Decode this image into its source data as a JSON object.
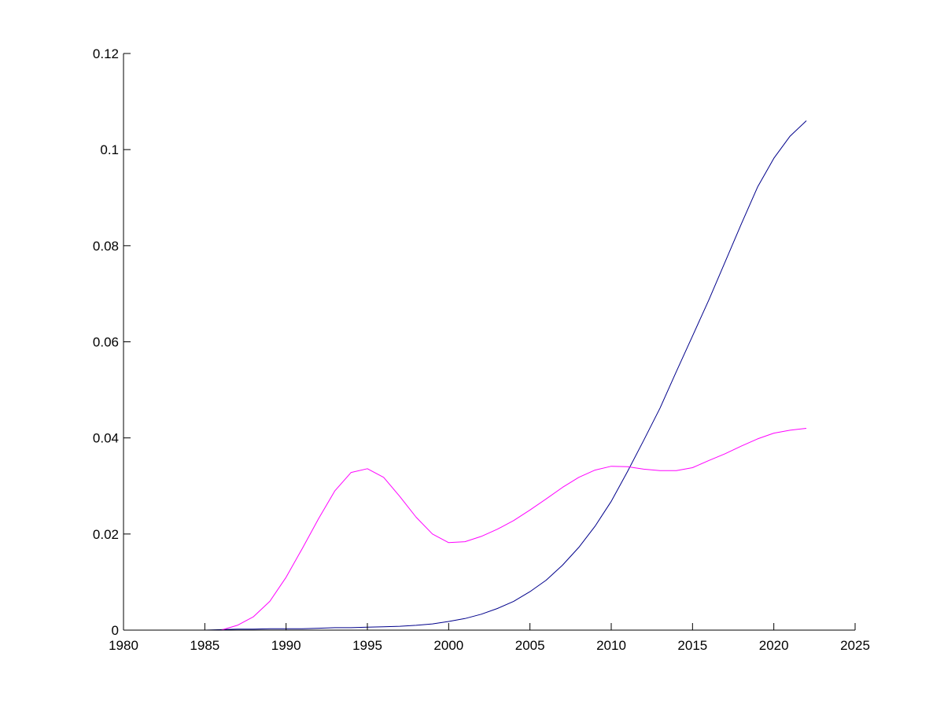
{
  "chart_data": {
    "type": "line",
    "title": "",
    "xlabel": "",
    "ylabel": "",
    "xlim": [
      1980,
      2025
    ],
    "ylim": [
      0,
      0.12
    ],
    "grid": false,
    "x_ticks": [
      1980,
      1985,
      1990,
      1995,
      2000,
      2005,
      2010,
      2015,
      2020,
      2025
    ],
    "x_tick_labels": [
      "1980",
      "1985",
      "1990",
      "1995",
      "2000",
      "2005",
      "2010",
      "2015",
      "2020",
      "2025"
    ],
    "y_ticks": [
      0,
      0.02,
      0.04,
      0.06,
      0.08,
      0.1,
      0.12
    ],
    "y_tick_labels": [
      "0",
      "0.02",
      "0.04",
      "0.06",
      "0.08",
      "0.1",
      "0.12"
    ],
    "x": [
      1980,
      1981,
      1982,
      1983,
      1984,
      1985,
      1986,
      1987,
      1988,
      1989,
      1990,
      1991,
      1992,
      1993,
      1994,
      1995,
      1996,
      1997,
      1998,
      1999,
      2000,
      2001,
      2002,
      2003,
      2004,
      2005,
      2006,
      2007,
      2008,
      2009,
      2010,
      2011,
      2012,
      2013,
      2014,
      2015,
      2016,
      2017,
      2018,
      2019,
      2020,
      2021,
      2022
    ],
    "series": [
      {
        "color": "#00008b",
        "values": [
          0,
          0,
          0,
          0,
          0,
          0,
          0.0001,
          0.0002,
          0.0002,
          0.0003,
          0.0003,
          0.0003,
          0.0004,
          0.0005,
          0.0005,
          0.0006,
          0.0007,
          0.0008,
          0.001,
          0.0013,
          0.0018,
          0.0024,
          0.0033,
          0.0045,
          0.006,
          0.008,
          0.0104,
          0.0135,
          0.0172,
          0.0216,
          0.0268,
          0.033,
          0.0395,
          0.0462,
          0.0538,
          0.0612,
          0.0687,
          0.0766,
          0.0845,
          0.0922,
          0.0982,
          0.1028,
          0.106
        ]
      },
      {
        "color": "#ff00ff",
        "values": [
          0,
          0,
          0,
          0,
          0,
          0,
          0,
          0.001,
          0.0028,
          0.006,
          0.011,
          0.017,
          0.0232,
          0.029,
          0.0328,
          0.0336,
          0.0318,
          0.0278,
          0.0235,
          0.02,
          0.0182,
          0.0184,
          0.0195,
          0.021,
          0.0228,
          0.025,
          0.0273,
          0.0297,
          0.0318,
          0.0333,
          0.0341,
          0.034,
          0.0335,
          0.0332,
          0.0332,
          0.0338,
          0.0353,
          0.0367,
          0.0383,
          0.0398,
          0.041,
          0.0416,
          0.042
        ]
      }
    ]
  }
}
